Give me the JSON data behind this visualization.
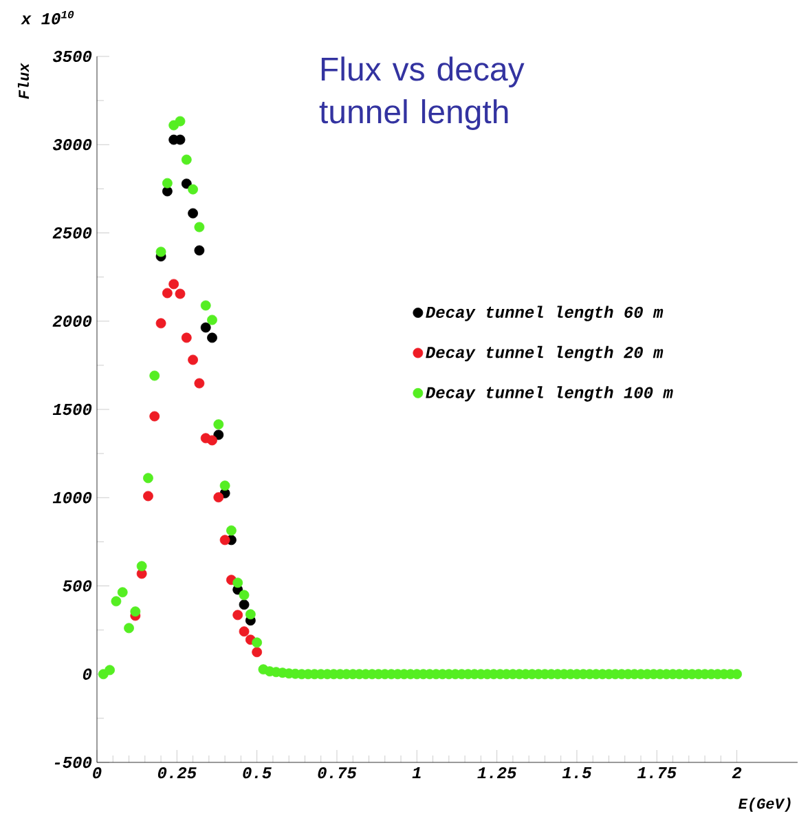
{
  "chart_data": {
    "type": "scatter",
    "title": "Flux vs decay tunnel length",
    "xlabel": "E(GeV)",
    "ylabel": "Flux",
    "annotations": [
      "x 10$^{10}$"
    ],
    "x": [
      0.02,
      0.04,
      0.06,
      0.08,
      0.1,
      0.12,
      0.14,
      0.16,
      0.18,
      0.2,
      0.22,
      0.24,
      0.26,
      0.28,
      0.3,
      0.32,
      0.34,
      0.36,
      0.38,
      0.4,
      0.42,
      0.44,
      0.46,
      0.48,
      0.5,
      0.52,
      0.54,
      0.56,
      0.58,
      0.6,
      0.62,
      0.64,
      0.66,
      0.68,
      0.7,
      0.72,
      0.74,
      0.76,
      0.78,
      0.8,
      0.82,
      0.84,
      0.86,
      0.88,
      0.9,
      0.92,
      0.94,
      0.96,
      0.98,
      1.0,
      1.02,
      1.04,
      1.06,
      1.08,
      1.1,
      1.12,
      1.14,
      1.16,
      1.18,
      1.2,
      1.22,
      1.24,
      1.26,
      1.28,
      1.3,
      1.32,
      1.34,
      1.36,
      1.38,
      1.4,
      1.42,
      1.44,
      1.46,
      1.48,
      1.5,
      1.52,
      1.54,
      1.56,
      1.58,
      1.6,
      1.62,
      1.64,
      1.66,
      1.68,
      1.7,
      1.72,
      1.74,
      1.76,
      1.78,
      1.8,
      1.82,
      1.84,
      1.86,
      1.88,
      1.9,
      1.92,
      1.94,
      1.96,
      1.98,
      2.0
    ],
    "series": [
      {
        "name": "Decay tunnel length 60 m",
        "color": "#000000",
        "values": [
          null,
          null,
          null,
          null,
          null,
          null,
          null,
          null,
          null,
          2367,
          2736,
          3028,
          3028,
          2779,
          2611,
          2401,
          1964,
          1906,
          1356,
          1025,
          760,
          479,
          394,
          304,
          null,
          null,
          null,
          null,
          null,
          null,
          null,
          null,
          null,
          null,
          null,
          null,
          null,
          null,
          null,
          null,
          null,
          null,
          null,
          null,
          null,
          null,
          null,
          null,
          null,
          null,
          null,
          null,
          null,
          null,
          null,
          null,
          null,
          null,
          null,
          null,
          null,
          null,
          null,
          null,
          null,
          null,
          null,
          null,
          null,
          null,
          null,
          null,
          null,
          null,
          null,
          null,
          null,
          null,
          null,
          null,
          null,
          null,
          null,
          null,
          null,
          null,
          null,
          null,
          null,
          null,
          null,
          null,
          null,
          null,
          null,
          null,
          null,
          null,
          null,
          null
        ]
      },
      {
        "name": "Decay tunnel length 20 m",
        "color": "#ee1c25",
        "values": [
          null,
          null,
          null,
          null,
          null,
          331,
          569,
          1009,
          1461,
          1988,
          2159,
          2210,
          2155,
          1906,
          1781,
          1648,
          1337,
          1325,
          1002,
          760,
          534,
          335,
          242,
          195,
          125,
          null,
          null,
          null,
          null,
          null,
          null,
          null,
          null,
          null,
          null,
          null,
          null,
          null,
          null,
          null,
          null,
          null,
          null,
          null,
          null,
          null,
          null,
          null,
          null,
          null,
          null,
          null,
          null,
          null,
          null,
          null,
          null,
          null,
          null,
          null,
          null,
          null,
          null,
          null,
          null,
          null,
          null,
          null,
          null,
          null,
          null,
          null,
          null,
          null,
          null,
          null,
          null,
          null,
          null,
          null,
          null,
          null,
          null,
          null,
          null,
          null,
          null,
          null,
          null,
          null,
          null,
          null,
          null,
          null,
          null,
          null,
          null,
          null,
          null,
          null
        ]
      },
      {
        "name": "Decay tunnel length 100 m",
        "color": "#55ee22",
        "values": [
          0,
          23,
          413,
          464,
          261,
          355,
          612,
          1111,
          1691,
          2393,
          2782,
          3110,
          3133,
          2915,
          2747,
          2533,
          2089,
          2007,
          1415,
          1068,
          814,
          518,
          448,
          339,
          179,
          27,
          16,
          12,
          8,
          4,
          2,
          0,
          0,
          0,
          0,
          0,
          0,
          0,
          0,
          0,
          0,
          0,
          0,
          0,
          0,
          0,
          0,
          0,
          0,
          0,
          0,
          0,
          0,
          0,
          0,
          0,
          0,
          0,
          0,
          0,
          0,
          0,
          0,
          0,
          0,
          0,
          0,
          0,
          0,
          0,
          0,
          0,
          0,
          0,
          0,
          0,
          0,
          0,
          0,
          0,
          0,
          0,
          0,
          0,
          0,
          0,
          0,
          0,
          0,
          0,
          0,
          0,
          0,
          0,
          0,
          0,
          0,
          0,
          0,
          0
        ]
      }
    ],
    "xlim": [
      0,
      2.19
    ],
    "ylim": [
      -500,
      3500
    ],
    "xticks": [
      0,
      0.25,
      0.5,
      0.75,
      1,
      1.25,
      1.5,
      1.75,
      2
    ],
    "yticks": [
      -500,
      0,
      500,
      1000,
      1500,
      2000,
      2500,
      3000,
      3500
    ],
    "grid": false,
    "legend": "right",
    "marker": "circle"
  }
}
